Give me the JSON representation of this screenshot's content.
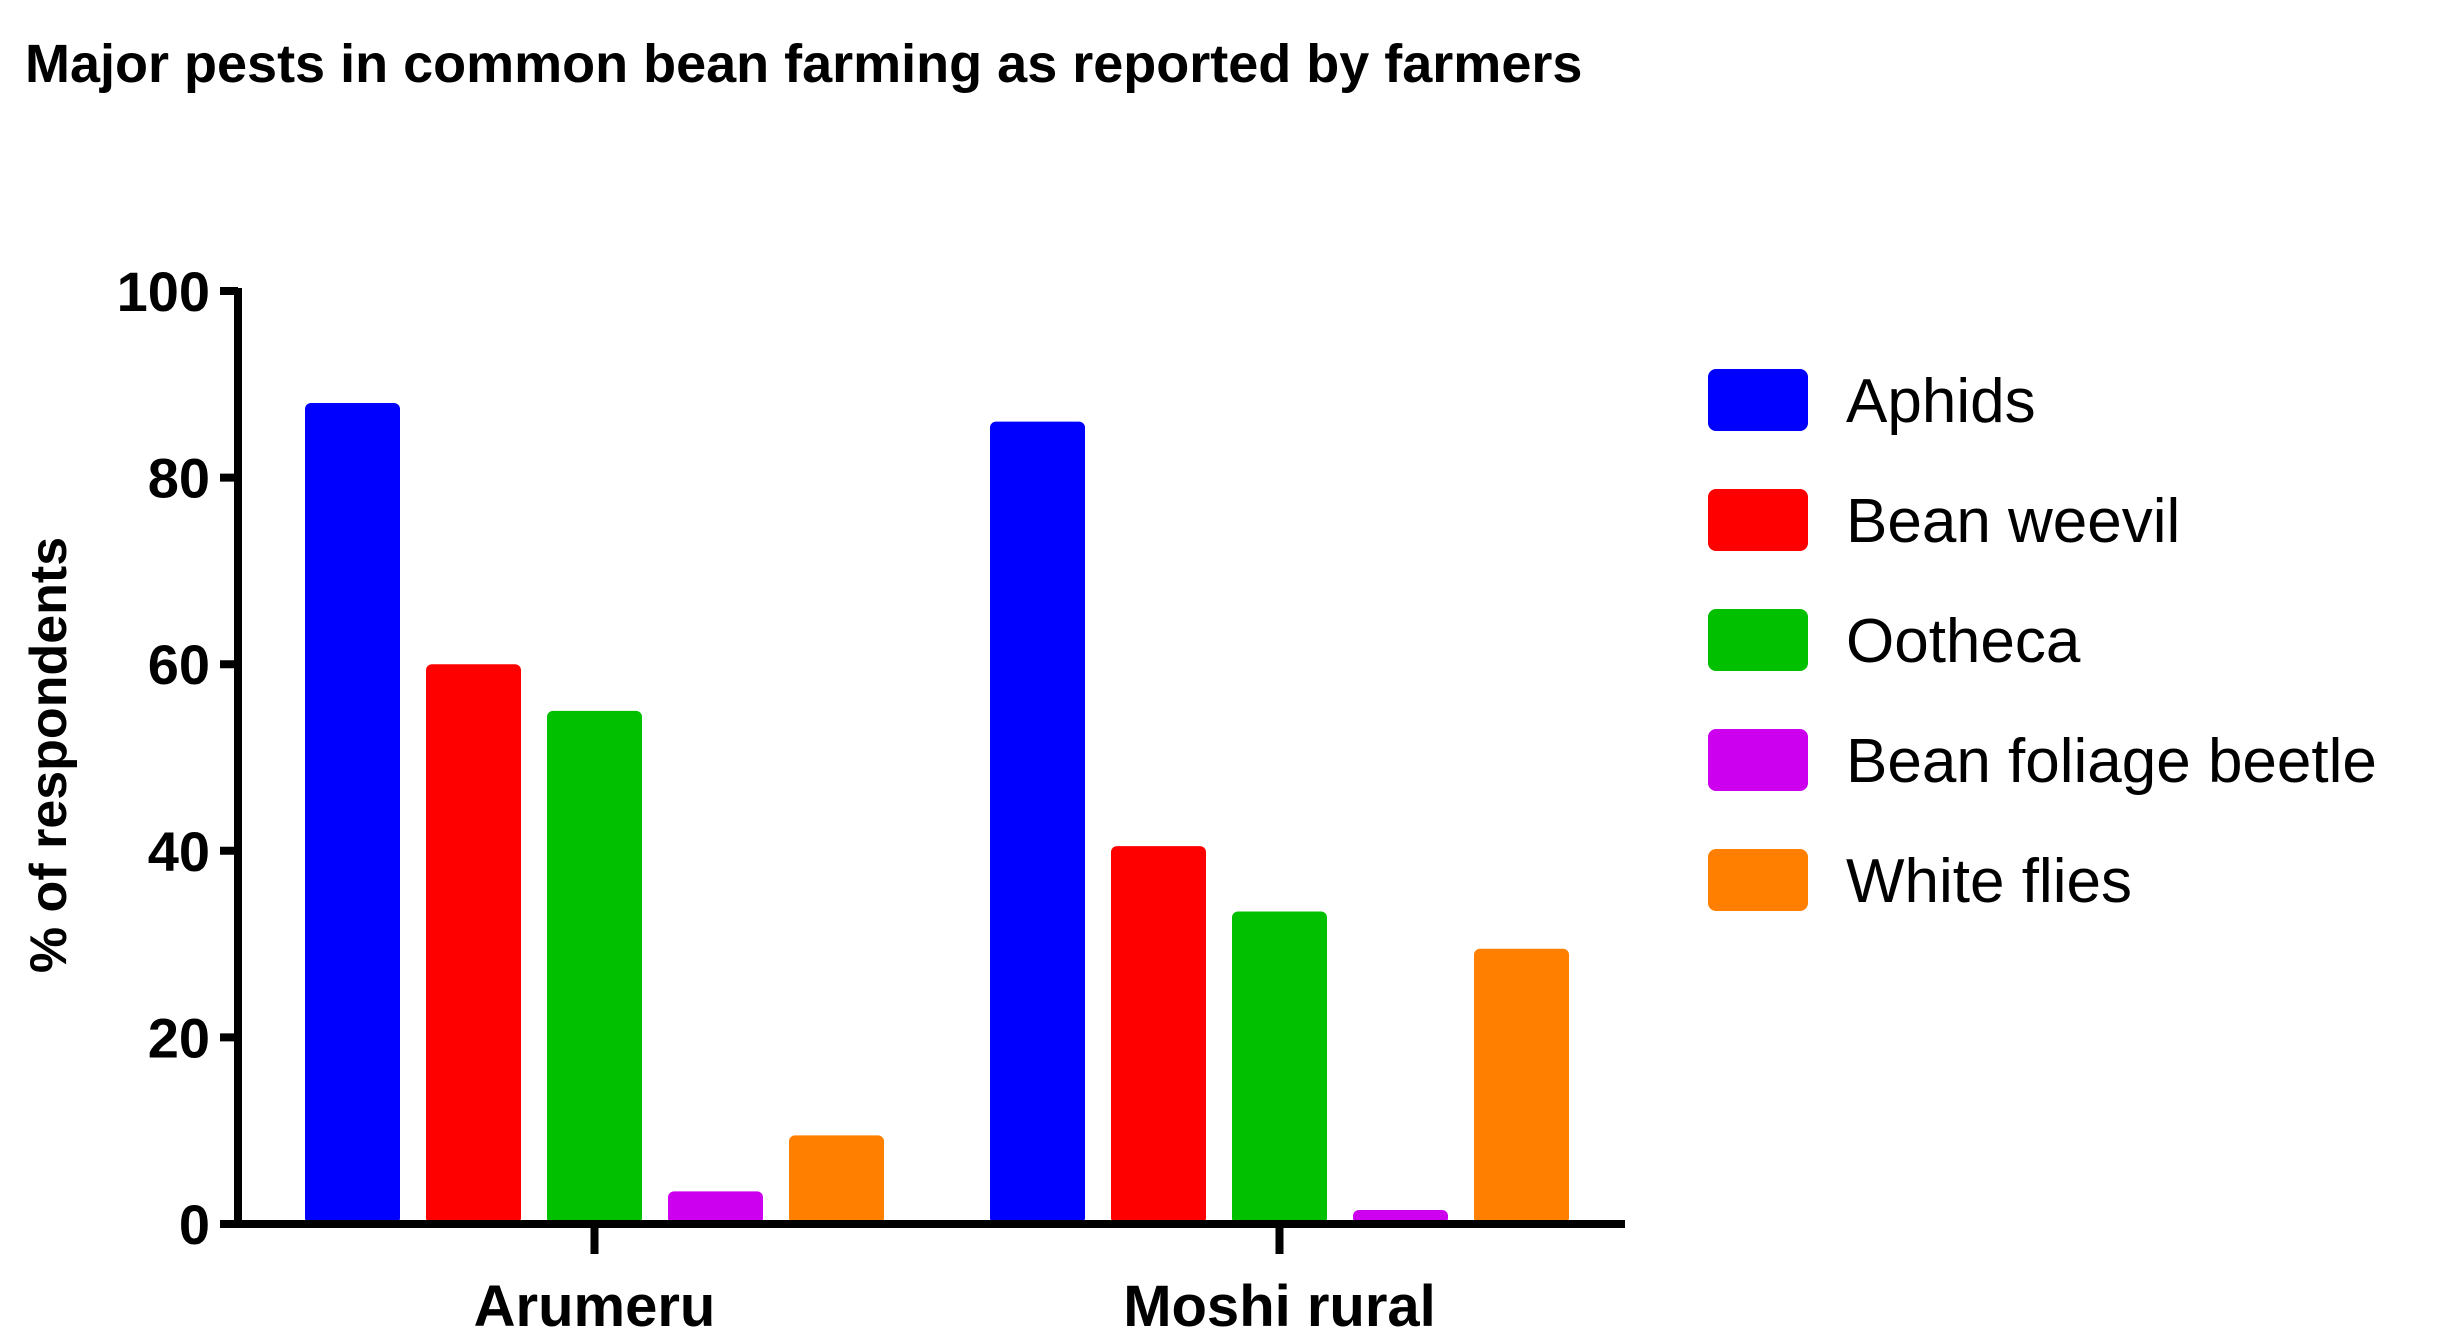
{
  "chart_data": {
    "type": "bar",
    "title": "Major pests in common bean farming as reported by farmers",
    "xlabel": "",
    "ylabel": "% of respondents",
    "ylim": [
      0,
      100
    ],
    "yticks": [
      0,
      20,
      40,
      60,
      80,
      100
    ],
    "categories": [
      "Arumeru",
      "Moshi rural"
    ],
    "series": [
      {
        "name": "Aphids",
        "color": "#0000ff",
        "values": [
          88,
          86
        ]
      },
      {
        "name": "Bean weevil",
        "color": "#ff0000",
        "values": [
          60,
          40.5
        ]
      },
      {
        "name": "Ootheca",
        "color": "#00c000",
        "values": [
          55,
          33.5
        ]
      },
      {
        "name": "Bean foliage beetle",
        "color": "#cc00ee",
        "values": [
          3.5,
          1.5
        ]
      },
      {
        "name": "White flies",
        "color": "#ff8000",
        "values": [
          9.5,
          29.5
        ]
      }
    ],
    "legend": "right",
    "grid": false
  }
}
